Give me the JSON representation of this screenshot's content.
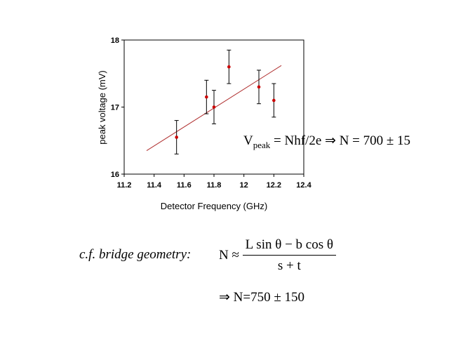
{
  "chart_data": {
    "type": "scatter",
    "title": "",
    "xlabel": "Detector Frequency (GHz)",
    "ylabel": "peak voltage (mV)",
    "xlim": [
      11.2,
      12.4
    ],
    "ylim": [
      16,
      18
    ],
    "xticks": [
      "11.2",
      "11.4",
      "11.6",
      "11.8",
      "12",
      "12.2",
      "12.4"
    ],
    "yticks": [
      "16",
      "17",
      "18"
    ],
    "grid": false,
    "legend": "none",
    "points": [
      {
        "x": 11.55,
        "y": 16.55,
        "err": 0.25
      },
      {
        "x": 11.75,
        "y": 17.15,
        "err": 0.25
      },
      {
        "x": 11.8,
        "y": 17.0,
        "err": 0.25
      },
      {
        "x": 11.9,
        "y": 17.6,
        "err": 0.25
      },
      {
        "x": 12.1,
        "y": 17.3,
        "err": 0.25
      },
      {
        "x": 12.2,
        "y": 17.1,
        "err": 0.25
      }
    ],
    "fit_line": {
      "x": [
        11.35,
        12.25
      ],
      "y": [
        16.35,
        17.62
      ]
    },
    "colors": {
      "points": "#cc0000",
      "fit": "#b03030",
      "errorbars": "#000000",
      "axes": "#000000"
    }
  },
  "equations": {
    "peak": {
      "v": "V",
      "v_sub": "peak",
      "rhs": " = Nhf/2e ",
      "arrow": "⇒",
      "result": " N = 700 ± 15"
    },
    "bridge": {
      "label": "c.f. bridge geometry:",
      "lhs": "N ≈",
      "num": "L sin θ − b cos θ",
      "den": "s + t"
    },
    "result": {
      "arrow": "⇒",
      "text": " N=750 ± 150"
    }
  }
}
